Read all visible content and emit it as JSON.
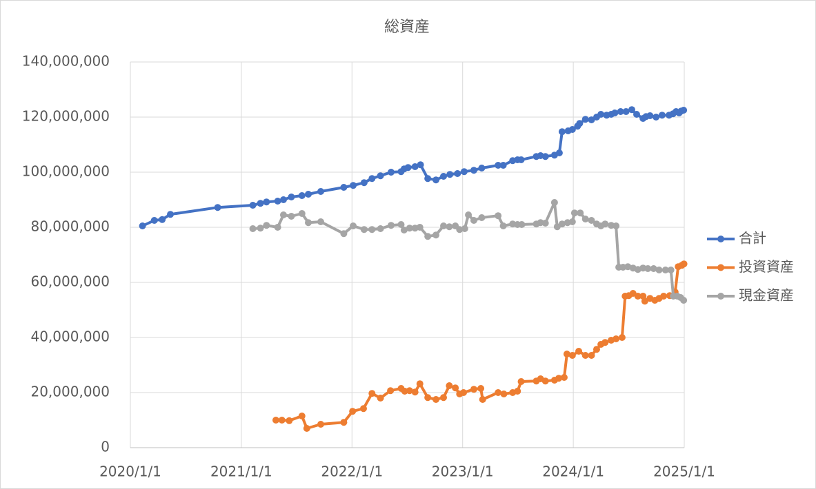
{
  "chart_data": {
    "type": "line",
    "title": "総資産",
    "xlim": [
      "2020/1/1",
      "2025/1/1"
    ],
    "xticks": [
      "2020/1/1",
      "2021/1/1",
      "2022/1/1",
      "2023/1/1",
      "2024/1/1",
      "2025/1/1"
    ],
    "ylim": [
      0,
      140000000
    ],
    "yticks": [
      0,
      {
        "value": 20000000,
        "label": "20,000,000"
      },
      {
        "value": 40000000,
        "label": "40,000,000"
      },
      {
        "value": 60000000,
        "label": "60,000,000"
      },
      {
        "value": 80000000,
        "label": "80,000,000"
      },
      {
        "value": 100000000,
        "label": "100,000,000"
      },
      {
        "value": 120000000,
        "label": "120,000,000"
      },
      {
        "value": 140000000,
        "label": "140,000,000"
      }
    ],
    "grid": true,
    "legend": "right",
    "series": [
      {
        "name": "合計",
        "color": "#4472c4",
        "x": [
          "2020/2/10",
          "2020/3/20",
          "2020/4/15",
          "2020/5/12",
          "2020/10/15",
          "2021/2/8",
          "2021/3/5",
          "2021/3/25",
          "2021/5/1",
          "2021/5/20",
          "2021/6/15",
          "2021/7/20",
          "2021/8/10",
          "2021/9/20",
          "2021/12/5",
          "2022/1/5",
          "2022/2/10",
          "2022/3/8",
          "2022/4/5",
          "2022/5/10",
          "2022/6/12",
          "2022/6/22",
          "2022/7/5",
          "2022/7/28",
          "2022/8/15",
          "2022/9/8",
          "2022/10/5",
          "2022/10/30",
          "2022/11/20",
          "2022/12/15",
          "2023/1/6",
          "2023/2/7",
          "2023/3/5",
          "2023/4/28",
          "2023/5/15",
          "2023/6/15",
          "2023/7/1",
          "2023/7/13",
          "2023/9/1",
          "2023/9/15",
          "2023/10/1",
          "2023/10/31",
          "2023/11/16",
          "2023/11/25",
          "2023/12/15",
          "2023/12/29",
          "2024/1/15",
          "2024/1/22",
          "2024/2/10",
          "2024/3/1",
          "2024/3/18",
          "2024/4/1",
          "2024/4/20",
          "2024/5/5",
          "2024/5/17",
          "2024/6/5",
          "2024/6/23",
          "2024/7/12",
          "2024/7/28",
          "2024/8/18",
          "2024/8/28",
          "2024/9/10",
          "2024/9/30",
          "2024/10/20",
          "2024/11/12",
          "2024/11/25",
          "2024/12/5",
          "2024/12/15",
          "2024/12/22",
          "2024/12/30"
        ],
        "values": [
          80500000,
          82500000,
          82800000,
          84700000,
          87200000,
          88000000,
          88700000,
          89200000,
          89500000,
          90000000,
          91000000,
          91500000,
          92000000,
          93000000,
          94500000,
          95200000,
          96200000,
          97700000,
          98700000,
          100000000,
          100200000,
          101200000,
          101700000,
          102000000,
          102700000,
          97700000,
          97200000,
          98500000,
          99200000,
          99500000,
          100200000,
          100700000,
          101500000,
          102500000,
          102500000,
          104200000,
          104500000,
          104500000,
          105700000,
          106000000,
          105700000,
          106200000,
          107000000,
          114700000,
          115000000,
          115500000,
          116700000,
          117700000,
          119200000,
          119000000,
          120000000,
          121000000,
          120700000,
          121000000,
          121500000,
          122000000,
          122000000,
          122700000,
          121000000,
          119500000,
          120200000,
          120500000,
          120000000,
          120700000,
          120700000,
          121200000,
          122000000,
          121500000,
          122200000,
          122500000
        ]
      },
      {
        "name": "投資資産",
        "color": "#ed7d31",
        "x": [
          "2021/4/25",
          "2021/5/15",
          "2021/6/8",
          "2021/7/20",
          "2021/8/5",
          "2021/9/20",
          "2021/12/5",
          "2022/1/3",
          "2022/2/8",
          "2022/3/8",
          "2022/4/5",
          "2022/5/8",
          "2022/6/12",
          "2022/6/24",
          "2022/7/10",
          "2022/7/28",
          "2022/8/13",
          "2022/9/8",
          "2022/10/5",
          "2022/10/30",
          "2022/11/18",
          "2022/12/8",
          "2022/12/22",
          "2023/1/4",
          "2023/2/7",
          "2023/3/2",
          "2023/3/8",
          "2023/4/28",
          "2023/5/17",
          "2023/6/15",
          "2023/7/1",
          "2023/7/13",
          "2023/9/1",
          "2023/9/15",
          "2023/10/1",
          "2023/10/31",
          "2023/11/14",
          "2023/12/2",
          "2023/12/11",
          "2023/12/29",
          "2024/1/19",
          "2024/2/10",
          "2024/3/1",
          "2024/3/18",
          "2024/4/1",
          "2024/4/15",
          "2024/5/5",
          "2024/5/21",
          "2024/6/10",
          "2024/6/20",
          "2024/7/2",
          "2024/7/16",
          "2024/8/1",
          "2024/8/18",
          "2024/8/24",
          "2024/9/10",
          "2024/9/26",
          "2024/10/10",
          "2024/10/25",
          "2024/11/14",
          "2024/12/2",
          "2024/12/12",
          "2024/12/24",
          "2024/12/31"
        ],
        "values": [
          10000000,
          10000000,
          9800000,
          11500000,
          7000000,
          8500000,
          9200000,
          13200000,
          14200000,
          19700000,
          18000000,
          20700000,
          21500000,
          20500000,
          20700000,
          20200000,
          23200000,
          18200000,
          17500000,
          18200000,
          22500000,
          21700000,
          19500000,
          20000000,
          21200000,
          21500000,
          17500000,
          20000000,
          19500000,
          20000000,
          20500000,
          24000000,
          24200000,
          25000000,
          24200000,
          24500000,
          25200000,
          25500000,
          34000000,
          33500000,
          35000000,
          33500000,
          33500000,
          35700000,
          37500000,
          38200000,
          39000000,
          39500000,
          40000000,
          55000000,
          55200000,
          56000000,
          55000000,
          55000000,
          53200000,
          54200000,
          53500000,
          54200000,
          55000000,
          55200000,
          56500000,
          65700000,
          66200000,
          66700000
        ]
      },
      {
        "name": "現金資産",
        "color": "#a5a5a5",
        "x": [
          "2021/2/8",
          "2021/3/5",
          "2021/3/25",
          "2021/5/1",
          "2021/5/20",
          "2021/6/15",
          "2021/7/20",
          "2021/8/10",
          "2021/9/20",
          "2021/12/5",
          "2022/1/5",
          "2022/2/10",
          "2022/3/8",
          "2022/4/5",
          "2022/5/10",
          "2022/6/12",
          "2022/6/22",
          "2022/7/10",
          "2022/7/28",
          "2022/8/13",
          "2022/9/8",
          "2022/10/5",
          "2022/10/30",
          "2022/11/18",
          "2022/12/8",
          "2022/12/22",
          "2023/1/8",
          "2023/1/20",
          "2023/2/7",
          "2023/3/5",
          "2023/4/28",
          "2023/5/15",
          "2023/6/15",
          "2023/7/1",
          "2023/7/15",
          "2023/9/1",
          "2023/9/15",
          "2023/10/1",
          "2023/10/31",
          "2023/11/9",
          "2023/11/25",
          "2023/12/13",
          "2023/12/29",
          "2024/1/5",
          "2024/1/24",
          "2024/2/10",
          "2024/3/1",
          "2024/3/18",
          "2024/4/1",
          "2024/4/15",
          "2024/5/5",
          "2024/5/21",
          "2024/5/30",
          "2024/6/13",
          "2024/6/29",
          "2024/7/16",
          "2024/8/1",
          "2024/8/18",
          "2024/9/3",
          "2024/9/22",
          "2024/10/10",
          "2024/10/31",
          "2024/11/18",
          "2024/11/26",
          "2024/12/9",
          "2024/12/20",
          "2024/12/30"
        ],
        "values": [
          79500000,
          79700000,
          80700000,
          80000000,
          84500000,
          84000000,
          85000000,
          81700000,
          82000000,
          77700000,
          80500000,
          79200000,
          79200000,
          79500000,
          80700000,
          81000000,
          79000000,
          79700000,
          79700000,
          80000000,
          76700000,
          77200000,
          80500000,
          80200000,
          80500000,
          79200000,
          79500000,
          84500000,
          82500000,
          83500000,
          84200000,
          80500000,
          81200000,
          81000000,
          81000000,
          81200000,
          81700000,
          81500000,
          89000000,
          80200000,
          81200000,
          81700000,
          82000000,
          85200000,
          85200000,
          83000000,
          82500000,
          81200000,
          80500000,
          81200000,
          80700000,
          80500000,
          65500000,
          65500000,
          65700000,
          65200000,
          64700000,
          65200000,
          65000000,
          65000000,
          64500000,
          64500000,
          64500000,
          55000000,
          55000000,
          54500000,
          53500000
        ]
      }
    ]
  }
}
